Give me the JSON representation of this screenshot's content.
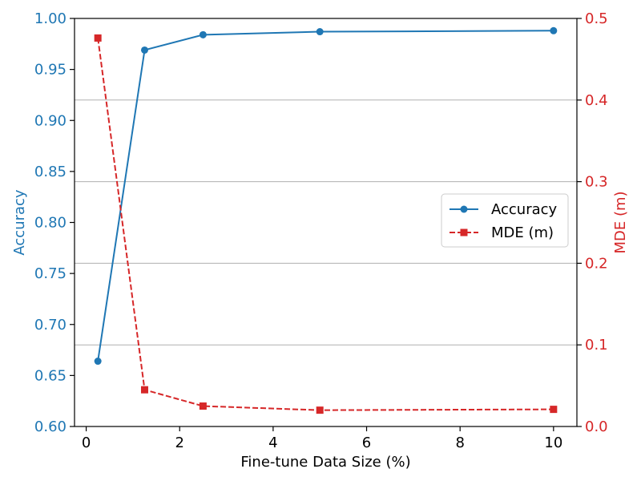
{
  "chart_data": {
    "type": "line",
    "title": "",
    "xlabel": "Fine-tune Data Size (%)",
    "ylabel_left": "Accuracy",
    "ylabel_right": "MDE (m)",
    "xlim": [
      -0.25,
      10.5
    ],
    "ylim_left": [
      0.6,
      1.0
    ],
    "ylim_right": [
      0.0,
      0.5
    ],
    "x_ticks": [
      0,
      2,
      4,
      6,
      8,
      10
    ],
    "y_left_ticks": [
      0.6,
      0.65,
      0.7,
      0.75,
      0.8,
      0.85,
      0.9,
      0.95,
      1.0
    ],
    "y_right_ticks": [
      0.0,
      0.1,
      0.2,
      0.3,
      0.4,
      0.5
    ],
    "x_tick_labels": [
      "0",
      "2",
      "4",
      "6",
      "8",
      "10"
    ],
    "y_left_tick_labels": [
      "0.60",
      "0.65",
      "0.70",
      "0.75",
      "0.80",
      "0.85",
      "0.90",
      "0.95",
      "1.00"
    ],
    "y_right_tick_labels": [
      "0.0",
      "0.1",
      "0.2",
      "0.3",
      "0.4",
      "0.5"
    ],
    "grid": "horizontal (right axis ticks)",
    "legend_position": "center-right",
    "series": [
      {
        "name": "Accuracy",
        "axis": "left",
        "color": "#1f77b4",
        "marker": "circle",
        "linestyle": "solid",
        "x": [
          0.25,
          1.25,
          2.5,
          5,
          10
        ],
        "values": [
          0.664,
          0.969,
          0.984,
          0.987,
          0.988
        ]
      },
      {
        "name": "MDE (m)",
        "axis": "right",
        "color": "#d62728",
        "marker": "square",
        "linestyle": "dashed",
        "x": [
          0.25,
          1.25,
          2.5,
          5,
          10
        ],
        "values": [
          0.476,
          0.045,
          0.025,
          0.02,
          0.021
        ]
      }
    ]
  }
}
